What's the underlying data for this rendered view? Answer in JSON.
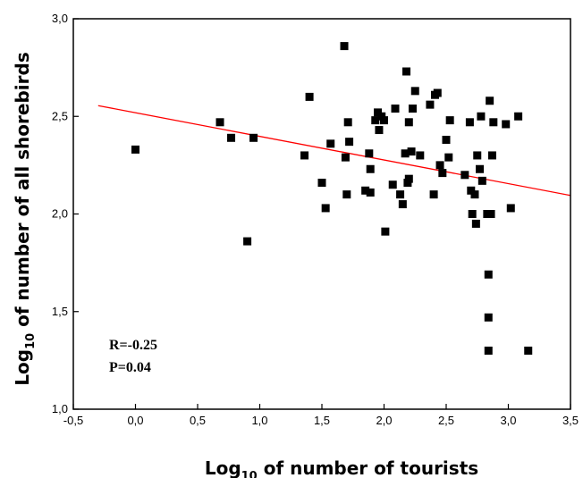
{
  "chart_data": {
    "type": "scatter",
    "title": "",
    "xlabel": {
      "prefix": "Log",
      "sub": "10",
      "suffix": " of number of tourists"
    },
    "ylabel": {
      "prefix": "Log",
      "sub": "10",
      "suffix": " of number of all shorebirds"
    },
    "xlim": [
      -0.5,
      3.5
    ],
    "ylim": [
      1.0,
      3.0
    ],
    "xticks": [
      -0.5,
      0.0,
      0.5,
      1.0,
      1.5,
      2.0,
      2.5,
      3.0,
      3.5
    ],
    "xtick_labels": [
      "-0,5",
      "0,0",
      "0,5",
      "1,0",
      "1,5",
      "2,0",
      "2,5",
      "3,0",
      "3,5"
    ],
    "yticks": [
      1.0,
      1.5,
      2.0,
      2.5,
      3.0
    ],
    "ytick_labels": [
      "1,0",
      "1,5",
      "2,0",
      "2,5",
      "3,0"
    ],
    "grid": false,
    "marker_color": "#000000",
    "fit_line_color": "#ff0000",
    "fit_line": {
      "x": [
        -0.3,
        3.5
      ],
      "y": [
        2.555,
        2.095
      ]
    },
    "annotations": {
      "r_text": "R=-0.25",
      "p_text": "P=0.04"
    },
    "points": [
      [
        0.0,
        2.33
      ],
      [
        0.68,
        2.47
      ],
      [
        0.77,
        2.39
      ],
      [
        0.9,
        1.86
      ],
      [
        0.95,
        2.39
      ],
      [
        1.36,
        2.3
      ],
      [
        1.4,
        2.6
      ],
      [
        1.5,
        2.16
      ],
      [
        1.53,
        2.03
      ],
      [
        1.57,
        2.36
      ],
      [
        1.68,
        2.86
      ],
      [
        1.69,
        2.29
      ],
      [
        1.7,
        2.1
      ],
      [
        1.71,
        2.47
      ],
      [
        1.72,
        2.37
      ],
      [
        1.85,
        2.12
      ],
      [
        1.88,
        2.31
      ],
      [
        1.89,
        2.23
      ],
      [
        1.89,
        2.11
      ],
      [
        1.93,
        2.48
      ],
      [
        1.95,
        2.52
      ],
      [
        1.96,
        2.43
      ],
      [
        1.98,
        2.5
      ],
      [
        2.0,
        2.48
      ],
      [
        2.01,
        1.91
      ],
      [
        2.07,
        2.15
      ],
      [
        2.09,
        2.54
      ],
      [
        2.13,
        2.1
      ],
      [
        2.15,
        2.05
      ],
      [
        2.17,
        2.31
      ],
      [
        2.18,
        2.73
      ],
      [
        2.19,
        2.16
      ],
      [
        2.2,
        2.47
      ],
      [
        2.2,
        2.18
      ],
      [
        2.22,
        2.32
      ],
      [
        2.23,
        2.54
      ],
      [
        2.25,
        2.63
      ],
      [
        2.29,
        2.3
      ],
      [
        2.37,
        2.56
      ],
      [
        2.4,
        2.1
      ],
      [
        2.41,
        2.61
      ],
      [
        2.43,
        2.62
      ],
      [
        2.45,
        2.25
      ],
      [
        2.47,
        2.21
      ],
      [
        2.5,
        2.38
      ],
      [
        2.52,
        2.29
      ],
      [
        2.53,
        2.48
      ],
      [
        2.65,
        2.2
      ],
      [
        2.69,
        2.47
      ],
      [
        2.7,
        2.12
      ],
      [
        2.71,
        2.0
      ],
      [
        2.73,
        2.1
      ],
      [
        2.74,
        1.95
      ],
      [
        2.75,
        2.3
      ],
      [
        2.77,
        2.23
      ],
      [
        2.78,
        2.5
      ],
      [
        2.79,
        2.17
      ],
      [
        2.83,
        2.0
      ],
      [
        2.84,
        1.69
      ],
      [
        2.84,
        1.47
      ],
      [
        2.84,
        1.3
      ],
      [
        2.85,
        2.58
      ],
      [
        2.86,
        2.0
      ],
      [
        2.87,
        2.3
      ],
      [
        2.88,
        2.47
      ],
      [
        2.98,
        2.46
      ],
      [
        3.02,
        2.03
      ],
      [
        3.08,
        2.5
      ],
      [
        3.16,
        1.3
      ]
    ]
  }
}
